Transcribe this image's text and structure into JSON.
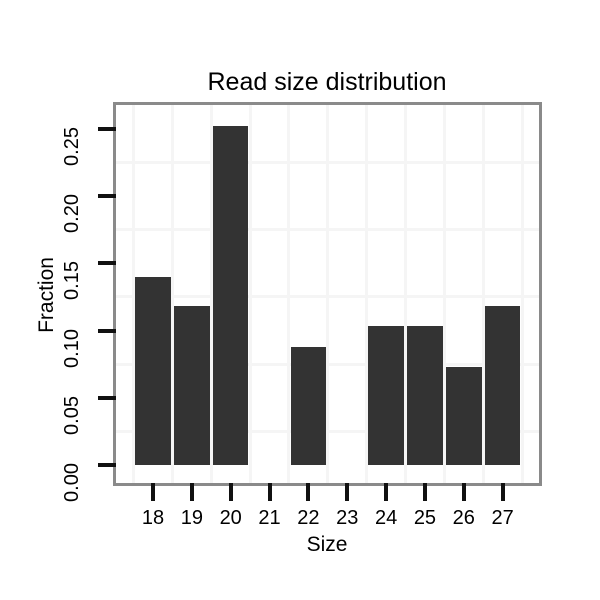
{
  "chart_data": {
    "type": "bar",
    "title": "Read size distribution",
    "xlabel": "Size",
    "ylabel": "Fraction",
    "categories": [
      "18",
      "19",
      "20",
      "21",
      "22",
      "23",
      "24",
      "25",
      "26",
      "27"
    ],
    "values": [
      0.14,
      0.118,
      0.252,
      0,
      0.088,
      0,
      0.103,
      0.103,
      0.073,
      0.118
    ],
    "ytick_labels": [
      "0.00",
      "0.05",
      "0.10",
      "0.15",
      "0.20",
      "0.25"
    ],
    "ytick_values": [
      0,
      0.05,
      0.1,
      0.15,
      0.2,
      0.25
    ],
    "minor_grid_y_values": [
      0.025,
      0.075,
      0.125,
      0.175,
      0.225
    ],
    "ylim": [
      0,
      0.268
    ],
    "grid": "light minor gridlines midway between ticks, horizontal and vertical",
    "legend_position": "none",
    "colors": {
      "bar": "#333333",
      "grid": "#f5f5f5",
      "panel_border": "#8a8a8a",
      "tick": "#111111",
      "text": "#000000",
      "background": "#ffffff"
    }
  }
}
